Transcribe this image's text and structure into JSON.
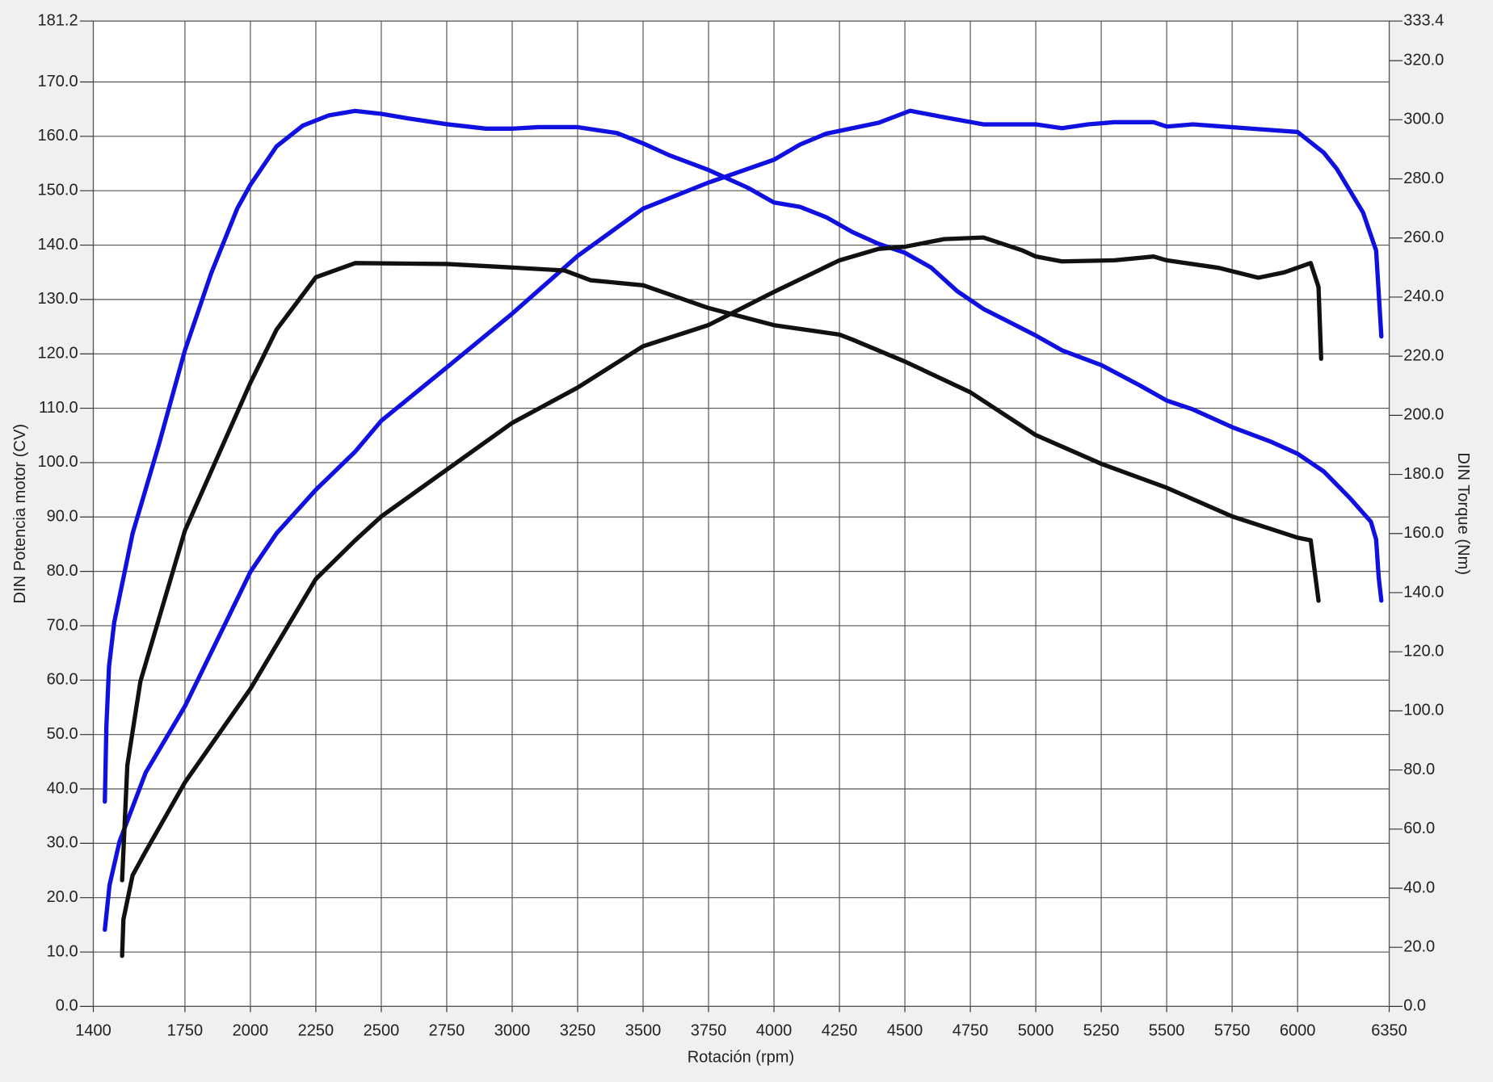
{
  "chart_data": {
    "type": "line",
    "x_label": "Rotación (rpm)",
    "y_label": "DIN Potencia motor (CV)",
    "y2_label": "DIN Torque (Nm)",
    "xlim": [
      1400,
      6350
    ],
    "xticks": [
      1400,
      1750,
      2000,
      2250,
      2500,
      2750,
      3000,
      3250,
      3500,
      3750,
      4000,
      4250,
      4500,
      4750,
      5000,
      5250,
      5500,
      5750,
      6000,
      6350
    ],
    "ylim": [
      0,
      181.2
    ],
    "yticks": [
      {
        "value": 0,
        "label": "0.0"
      },
      {
        "value": 10,
        "label": "10.0"
      },
      {
        "value": 20,
        "label": "20.0"
      },
      {
        "value": 30,
        "label": "30.0"
      },
      {
        "value": 40,
        "label": "40.0"
      },
      {
        "value": 50,
        "label": "50.0"
      },
      {
        "value": 60,
        "label": "60.0"
      },
      {
        "value": 70,
        "label": "70.0"
      },
      {
        "value": 80,
        "label": "80.0"
      },
      {
        "value": 90,
        "label": "90.0"
      },
      {
        "value": 100,
        "label": "100.0"
      },
      {
        "value": 110,
        "label": "110.0"
      },
      {
        "value": 120,
        "label": "120.0"
      },
      {
        "value": 130,
        "label": "130.0"
      },
      {
        "value": 140,
        "label": "140.0"
      },
      {
        "value": 150,
        "label": "150.0"
      },
      {
        "value": 160,
        "label": "160.0"
      },
      {
        "value": 170,
        "label": "170.0"
      },
      181.2
    ],
    "y2lim": [
      0,
      333.4
    ],
    "y2ticks": [
      {
        "value": 0,
        "label": "0.0"
      },
      {
        "value": 20,
        "label": "20.0"
      },
      {
        "value": 40,
        "label": "40.0"
      },
      {
        "value": 60,
        "label": "60.0"
      },
      {
        "value": 80,
        "label": "80.0"
      },
      {
        "value": 100,
        "label": "100.0"
      },
      {
        "value": 120,
        "label": "120.0"
      },
      {
        "value": 140,
        "label": "140.0"
      },
      {
        "value": 160,
        "label": "160.0"
      },
      {
        "value": 180,
        "label": "180.0"
      },
      {
        "value": 200,
        "label": "200.0"
      },
      {
        "value": 220,
        "label": "220.0"
      },
      {
        "value": 240,
        "label": "240.0"
      },
      {
        "value": 260,
        "label": "260.0"
      },
      {
        "value": 280,
        "label": "280.0"
      },
      {
        "value": 300,
        "label": "300.0"
      },
      {
        "value": 320,
        "label": "320.0"
      },
      333.4
    ],
    "grid": true,
    "series": [
      {
        "color": "#1010e0",
        "axis": "y",
        "x": [
          1444,
          1462,
          1500,
          1600,
          1750,
          1900,
          2000,
          2100,
          2250,
          2400,
          2500,
          2750,
          3000,
          3250,
          3500,
          3750,
          4000,
          4100,
          4200,
          4300,
          4400,
          4520,
          4650,
          4800,
          5000,
          5100,
          5200,
          5300,
          5450,
          5500,
          5600,
          5800,
          6000,
          6100,
          6150,
          6250,
          6300,
          6320
        ],
        "values": [
          14.1,
          22.3,
          30.3,
          43,
          55.2,
          70,
          79.9,
          87,
          95,
          102,
          107.7,
          117.5,
          127.4,
          138,
          146.7,
          151.5,
          155.7,
          158.5,
          160.5,
          161.5,
          162.5,
          164.7,
          163.5,
          162.2,
          162.2,
          161.5,
          162.2,
          162.6,
          162.6,
          161.8,
          162.2,
          161.5,
          160.8,
          157,
          154,
          146,
          139,
          123.2
        ]
      },
      {
        "color": "#1010e0",
        "axis": "y2",
        "x": [
          1444,
          1450,
          1460,
          1480,
          1550,
          1650,
          1750,
          1850,
          1950,
          2000,
          2100,
          2200,
          2300,
          2400,
          2500,
          2600,
          2750,
          2900,
          3000,
          3100,
          3250,
          3400,
          3500,
          3600,
          3750,
          3900,
          4000,
          4100,
          4200,
          4300,
          4400,
          4500,
          4600,
          4700,
          4800,
          4900,
          5000,
          5100,
          5250,
          5400,
          5500,
          5600,
          5750,
          5900,
          6000,
          6100,
          6200,
          6280,
          6300,
          6310,
          6320
        ],
        "values": [
          69.3,
          95,
          115,
          130,
          160,
          190,
          222,
          248,
          270,
          278,
          291,
          298,
          301.5,
          303,
          302,
          300.5,
          298.5,
          297,
          297,
          297.5,
          297.5,
          295.5,
          292,
          288,
          283,
          277,
          272,
          270.5,
          267,
          262,
          258,
          255,
          250,
          242,
          236,
          231.5,
          227,
          222,
          217,
          210,
          205,
          202,
          196,
          191,
          187,
          181,
          172,
          164,
          158,
          145,
          137.3
        ]
      },
      {
        "color": "#111111",
        "axis": "y",
        "x": [
          1510,
          1515,
          1550,
          1600,
          1750,
          2000,
          2250,
          2400,
          2500,
          3000,
          3250,
          3500,
          3750,
          4000,
          4250,
          4400,
          4500,
          4650,
          4800,
          4950,
          5000,
          5100,
          5300,
          5450,
          5500,
          5700,
          5850,
          5950,
          6050,
          6080,
          6090
        ],
        "values": [
          9.3,
          16,
          24.1,
          28.5,
          41.2,
          58.4,
          78.6,
          85.7,
          90.1,
          107.3,
          113.8,
          121.4,
          125.3,
          131.4,
          137.2,
          139.3,
          139.7,
          141.1,
          141.4,
          139,
          137.9,
          137,
          137.2,
          137.9,
          137.2,
          135.8,
          134,
          135,
          136.7,
          132.3,
          119.1
        ]
      },
      {
        "color": "#111111",
        "axis": "y2",
        "x": [
          1510,
          1530,
          1580,
          1750,
          2000,
          2100,
          2250,
          2400,
          2750,
          3000,
          3200,
          3300,
          3500,
          3750,
          4000,
          4250,
          4300,
          4500,
          4750,
          5000,
          5250,
          5500,
          5750,
          6000,
          6050,
          6080
        ],
        "values": [
          42.7,
          81.6,
          110,
          161,
          211,
          229,
          246.7,
          251.5,
          251.2,
          250,
          249,
          245.7,
          244,
          236.3,
          230.5,
          227.3,
          225.6,
          218.2,
          207.8,
          193.3,
          183.6,
          175.5,
          165.8,
          158.6,
          157.7,
          137.3
        ]
      }
    ]
  }
}
